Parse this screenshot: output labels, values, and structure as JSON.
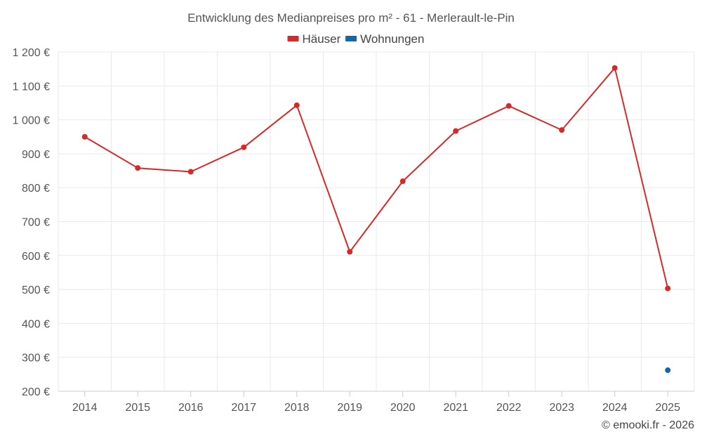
{
  "chart_data": {
    "type": "line",
    "title": "Entwicklung des Medianpreises pro m² - 61 - Merlerault-le-Pin",
    "categories": [
      "2014",
      "2015",
      "2016",
      "2017",
      "2018",
      "2019",
      "2020",
      "2021",
      "2022",
      "2023",
      "2024",
      "2025"
    ],
    "series": [
      {
        "name": "Häuser",
        "color": "#d42a2a",
        "values": [
          950,
          858,
          847,
          919,
          1043,
          611,
          819,
          967,
          1041,
          970,
          1153,
          503
        ]
      },
      {
        "name": "Wohnungen",
        "color": "#1565a8",
        "values": [
          null,
          null,
          null,
          null,
          null,
          null,
          null,
          null,
          null,
          null,
          null,
          262
        ]
      }
    ],
    "ylim": [
      200,
      1200
    ],
    "yticks": [
      200,
      300,
      400,
      500,
      600,
      700,
      800,
      900,
      1000,
      1100,
      1200
    ],
    "ytick_labels": [
      "200 €",
      "300 €",
      "400 €",
      "500 €",
      "600 €",
      "700 €",
      "800 €",
      "900 €",
      "1 000 €",
      "1 100 €",
      "1 200 €"
    ],
    "xlabel": "",
    "ylabel": "",
    "grid": true,
    "legend_position": "top-center"
  },
  "credit": "© emooki.fr - 2026"
}
